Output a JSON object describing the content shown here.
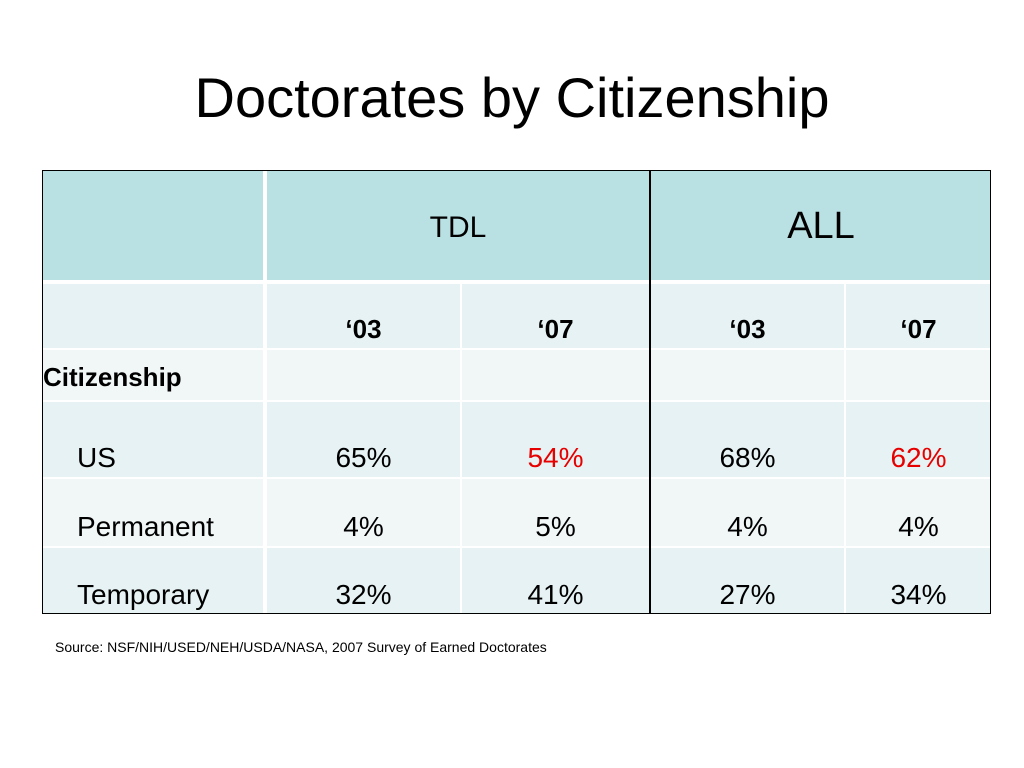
{
  "slide": {
    "title": "Doctorates by Citizenship",
    "source": "Source: NSF/NIH/USED/NEH/USDA/NASA, 2007 Survey of Earned Doctorates"
  },
  "table": {
    "groups": [
      "TDL",
      "ALL"
    ],
    "years": [
      "‘03",
      "‘07",
      "‘03",
      "‘07"
    ],
    "section_label": "Citizenship",
    "rows": [
      {
        "label": "US",
        "values": [
          "65%",
          "54%",
          "68%",
          "62%"
        ]
      },
      {
        "label": "Permanent",
        "values": [
          "4%",
          "5%",
          "4%",
          "4%"
        ]
      },
      {
        "label": "Temporary",
        "values": [
          "32%",
          "41%",
          "27%",
          "34%"
        ]
      }
    ],
    "highlight_color": "#e60000",
    "header_color": "#b9e0e3"
  }
}
